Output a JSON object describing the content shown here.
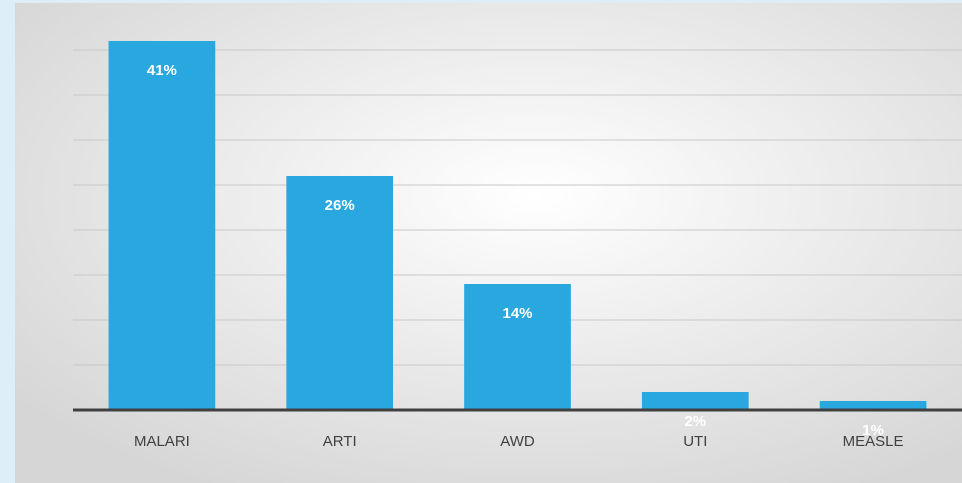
{
  "chart_data": {
    "type": "bar",
    "categories": [
      "MALARI",
      "ARTI",
      "AWD",
      "UTI",
      "MEASLE"
    ],
    "values": [
      41,
      26,
      14,
      2,
      1
    ],
    "value_labels": [
      "41%",
      "26%",
      "14%",
      "2%",
      "1%"
    ],
    "color": "#29a8e0",
    "ylim": [
      0,
      45
    ],
    "yticks": [
      0,
      5,
      10,
      15,
      20,
      25,
      30,
      35,
      40
    ],
    "grid": true
  }
}
